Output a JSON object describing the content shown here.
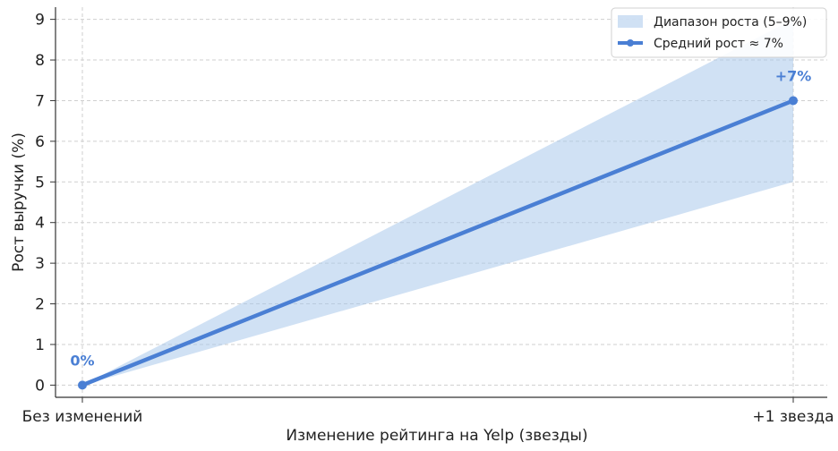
{
  "chart_data": {
    "type": "line",
    "categories": [
      "Без изменений",
      "+1 звезда"
    ],
    "xlabel": "Изменение рейтинга на Yelp (звезды)",
    "ylabel": "Рост выручки (%)",
    "ylim": [
      -0.3,
      9.3
    ],
    "yticks": [
      0,
      1,
      2,
      3,
      4,
      5,
      6,
      7,
      8,
      9
    ],
    "grid": true,
    "legend_position": "top-right",
    "series": [
      {
        "name": "Средний рост ≈ 7%",
        "values": [
          0,
          7
        ],
        "color": "#4a7fd4"
      }
    ],
    "band": {
      "name": "Диапазон роста (5–9%)",
      "lower": [
        0,
        5
      ],
      "upper": [
        0,
        9
      ],
      "color": "#a9c8eb"
    },
    "annotations": [
      {
        "category": "Без изменений",
        "value": 0,
        "text": "0%"
      },
      {
        "category": "+1 звезда",
        "value": 7,
        "text": "+7%"
      }
    ]
  }
}
